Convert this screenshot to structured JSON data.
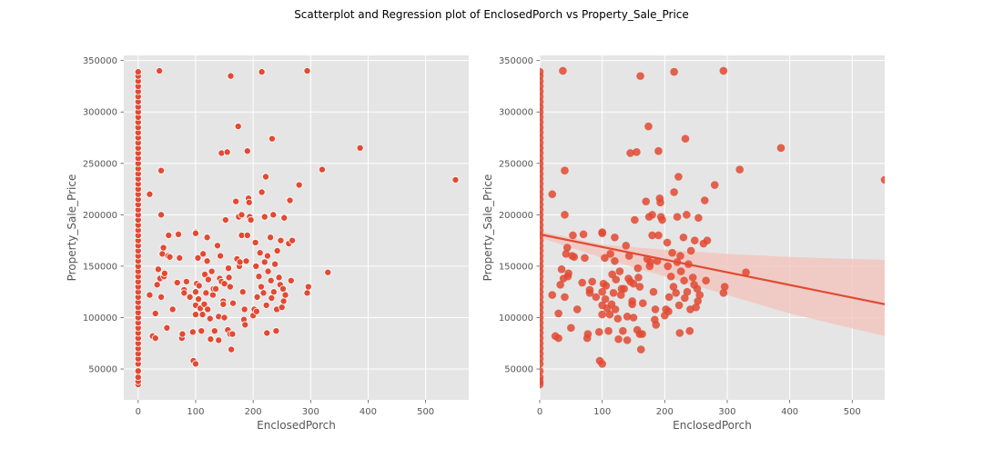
{
  "figure": {
    "suptitle": "Scatterplot and Regression plot of EnclosedPorch vs Property_Sale_Price"
  },
  "colors": {
    "point": "#e24a33",
    "axes_bg": "#e5e5e5",
    "grid": "#ffffff",
    "ci_band": "#f2c4bd"
  },
  "chart_data": [
    {
      "type": "scatter",
      "xlabel": "EnclosedPorch",
      "ylabel": "Property_Sale_Price",
      "xlim": [
        -25,
        575
      ],
      "ylim": [
        20000,
        355000
      ],
      "xticks": [
        0,
        100,
        200,
        300,
        400,
        500
      ],
      "yticks": [
        50000,
        100000,
        150000,
        200000,
        250000,
        300000,
        350000
      ],
      "tick_labels_x": [
        "0",
        "100",
        "200",
        "300",
        "400",
        "500"
      ],
      "tick_labels_y": [
        "50000",
        "100000",
        "150000",
        "200000",
        "250000",
        "300000",
        "350000"
      ],
      "grid": true,
      "points": [
        [
          0,
          35000
        ],
        [
          0,
          38000
        ],
        [
          0,
          42000
        ],
        [
          0,
          48000
        ],
        [
          0,
          55000
        ],
        [
          0,
          60000
        ],
        [
          0,
          65000
        ],
        [
          0,
          70000
        ],
        [
          0,
          75000
        ],
        [
          0,
          80000
        ],
        [
          0,
          85000
        ],
        [
          0,
          90000
        ],
        [
          0,
          95000
        ],
        [
          0,
          100000
        ],
        [
          0,
          105000
        ],
        [
          0,
          110000
        ],
        [
          0,
          115000
        ],
        [
          0,
          120000
        ],
        [
          0,
          125000
        ],
        [
          0,
          130000
        ],
        [
          0,
          135000
        ],
        [
          0,
          140000
        ],
        [
          0,
          145000
        ],
        [
          0,
          150000
        ],
        [
          0,
          155000
        ],
        [
          0,
          160000
        ],
        [
          0,
          165000
        ],
        [
          0,
          170000
        ],
        [
          0,
          175000
        ],
        [
          0,
          180000
        ],
        [
          0,
          185000
        ],
        [
          0,
          190000
        ],
        [
          0,
          195000
        ],
        [
          0,
          200000
        ],
        [
          0,
          205000
        ],
        [
          0,
          210000
        ],
        [
          0,
          215000
        ],
        [
          0,
          220000
        ],
        [
          0,
          225000
        ],
        [
          0,
          230000
        ],
        [
          0,
          235000
        ],
        [
          0,
          240000
        ],
        [
          0,
          245000
        ],
        [
          0,
          250000
        ],
        [
          0,
          255000
        ],
        [
          0,
          260000
        ],
        [
          0,
          265000
        ],
        [
          0,
          270000
        ],
        [
          0,
          275000
        ],
        [
          0,
          280000
        ],
        [
          0,
          285000
        ],
        [
          0,
          290000
        ],
        [
          0,
          295000
        ],
        [
          0,
          300000
        ],
        [
          0,
          305000
        ],
        [
          0,
          310000
        ],
        [
          0,
          315000
        ],
        [
          0,
          320000
        ],
        [
          0,
          325000
        ],
        [
          0,
          330000
        ],
        [
          0,
          335000
        ],
        [
          0,
          339000
        ],
        [
          20,
          220000
        ],
        [
          20,
          122000
        ],
        [
          25,
          82000
        ],
        [
          30,
          80000
        ],
        [
          30,
          104000
        ],
        [
          33,
          132000
        ],
        [
          35,
          147000
        ],
        [
          37,
          340000
        ],
        [
          38,
          138000
        ],
        [
          40,
          243000
        ],
        [
          40,
          200000
        ],
        [
          40,
          120000
        ],
        [
          42,
          162000
        ],
        [
          44,
          168000
        ],
        [
          45,
          140000
        ],
        [
          46,
          143000
        ],
        [
          50,
          90000
        ],
        [
          52,
          160000
        ],
        [
          53,
          180000
        ],
        [
          55,
          159000
        ],
        [
          60,
          108000
        ],
        [
          68,
          134000
        ],
        [
          70,
          181000
        ],
        [
          72,
          158000
        ],
        [
          76,
          80000
        ],
        [
          77,
          84000
        ],
        [
          80,
          127000
        ],
        [
          80,
          124000
        ],
        [
          84,
          135000
        ],
        [
          90,
          120000
        ],
        [
          95,
          86000
        ],
        [
          96,
          58000
        ],
        [
          100,
          55000
        ],
        [
          100,
          183000
        ],
        [
          100,
          182000
        ],
        [
          100,
          125000
        ],
        [
          100,
          112000
        ],
        [
          100,
          103000
        ],
        [
          102,
          133000
        ],
        [
          104,
          158000
        ],
        [
          105,
          118000
        ],
        [
          106,
          131000
        ],
        [
          108,
          109000
        ],
        [
          110,
          87000
        ],
        [
          112,
          103000
        ],
        [
          113,
          162000
        ],
        [
          115,
          113000
        ],
        [
          116,
          142000
        ],
        [
          118,
          124000
        ],
        [
          120,
          155000
        ],
        [
          120,
          178000
        ],
        [
          121,
          108000
        ],
        [
          122,
          137000
        ],
        [
          125,
          99000
        ],
        [
          126,
          79000
        ],
        [
          128,
          145000
        ],
        [
          130,
          122000
        ],
        [
          131,
          128000
        ],
        [
          133,
          87000
        ],
        [
          135,
          128000
        ],
        [
          138,
          170000
        ],
        [
          140,
          78000
        ],
        [
          140,
          101000
        ],
        [
          142,
          138000
        ],
        [
          143,
          160000
        ],
        [
          145,
          135000
        ],
        [
          145,
          260000
        ],
        [
          148,
          116000
        ],
        [
          148,
          113000
        ],
        [
          150,
          100000
        ],
        [
          150,
          133000
        ],
        [
          152,
          195000
        ],
        [
          155,
          261000
        ],
        [
          156,
          88000
        ],
        [
          157,
          148000
        ],
        [
          158,
          139000
        ],
        [
          160,
          84000
        ],
        [
          160,
          130000
        ],
        [
          161,
          335000
        ],
        [
          162,
          69000
        ],
        [
          164,
          84000
        ],
        [
          165,
          114000
        ],
        [
          170,
          213000
        ],
        [
          172,
          157000
        ],
        [
          174,
          286000
        ],
        [
          175,
          198000
        ],
        [
          176,
          150000
        ],
        [
          177,
          154000
        ],
        [
          180,
          180000
        ],
        [
          180,
          200000
        ],
        [
          182,
          125000
        ],
        [
          184,
          98000
        ],
        [
          185,
          108000
        ],
        [
          186,
          93000
        ],
        [
          188,
          155000
        ],
        [
          190,
          180000
        ],
        [
          190,
          262000
        ],
        [
          192,
          216000
        ],
        [
          193,
          212000
        ],
        [
          194,
          198000
        ],
        [
          196,
          195000
        ],
        [
          200,
          102000
        ],
        [
          202,
          108000
        ],
        [
          204,
          173000
        ],
        [
          205,
          150000
        ],
        [
          206,
          106000
        ],
        [
          207,
          120000
        ],
        [
          210,
          140000
        ],
        [
          212,
          163000
        ],
        [
          214,
          130000
        ],
        [
          215,
          339000
        ],
        [
          215,
          222000
        ],
        [
          218,
          124000
        ],
        [
          220,
          154000
        ],
        [
          220,
          198000
        ],
        [
          222,
          237000
        ],
        [
          223,
          112000
        ],
        [
          224,
          85000
        ],
        [
          225,
          160000
        ],
        [
          226,
          145000
        ],
        [
          230,
          178000
        ],
        [
          231,
          136000
        ],
        [
          232,
          119000
        ],
        [
          233,
          274000
        ],
        [
          235,
          200000
        ],
        [
          236,
          125000
        ],
        [
          238,
          152000
        ],
        [
          240,
          87000
        ],
        [
          241,
          108000
        ],
        [
          242,
          165000
        ],
        [
          245,
          139000
        ],
        [
          247,
          132000
        ],
        [
          248,
          175000
        ],
        [
          250,
          110000
        ],
        [
          252,
          128000
        ],
        [
          253,
          116000
        ],
        [
          254,
          197000
        ],
        [
          256,
          122000
        ],
        [
          262,
          172000
        ],
        [
          264,
          214000
        ],
        [
          266,
          136000
        ],
        [
          268,
          175000
        ],
        [
          280,
          229000
        ],
        [
          294,
          340000
        ],
        [
          294,
          124000
        ],
        [
          296,
          130000
        ],
        [
          320,
          244000
        ],
        [
          330,
          144000
        ],
        [
          386,
          265000
        ],
        [
          552,
          234000
        ]
      ]
    },
    {
      "type": "scatter",
      "xlabel": "EnclosedPorch",
      "ylabel": "Property_Sale_Price",
      "xlim": [
        0,
        552
      ],
      "ylim": [
        20000,
        355000
      ],
      "xticks": [
        0,
        100,
        200,
        300,
        400,
        500
      ],
      "yticks": [
        50000,
        100000,
        150000,
        200000,
        250000,
        300000,
        350000
      ],
      "tick_labels_x": [
        "0",
        "100",
        "200",
        "300",
        "400",
        "500"
      ],
      "tick_labels_y": [
        "50000",
        "100000",
        "150000",
        "200000",
        "250000",
        "300000",
        "350000"
      ],
      "grid": true,
      "regression": {
        "line": [
          [
            0,
            181000
          ],
          [
            552,
            113000
          ]
        ],
        "ci_upper": [
          [
            0,
            184000
          ],
          [
            100,
            171000
          ],
          [
            200,
            166000
          ],
          [
            300,
            162000
          ],
          [
            400,
            159000
          ],
          [
            552,
            156000
          ]
        ],
        "ci_lower": [
          [
            0,
            178000
          ],
          [
            100,
            158000
          ],
          [
            200,
            140000
          ],
          [
            300,
            122000
          ],
          [
            400,
            104000
          ],
          [
            552,
            82000
          ]
        ]
      }
    }
  ]
}
